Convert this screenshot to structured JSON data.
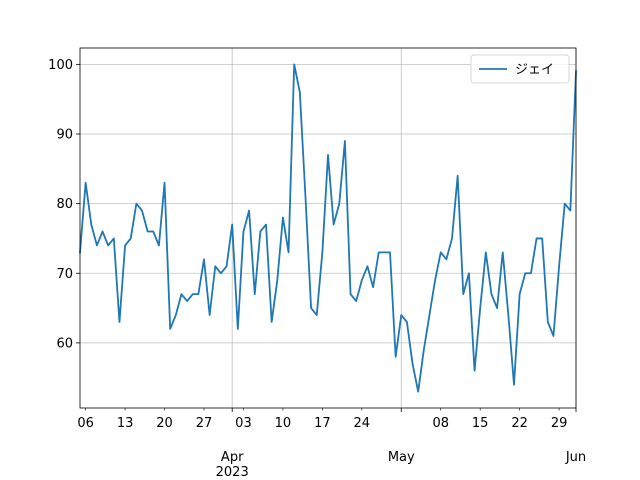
{
  "chart_data": {
    "type": "line",
    "title": "",
    "xlabel": "",
    "ylabel": "",
    "x": [
      "2023-03-05",
      "2023-03-06",
      "2023-03-07",
      "2023-03-08",
      "2023-03-09",
      "2023-03-10",
      "2023-03-11",
      "2023-03-12",
      "2023-03-13",
      "2023-03-14",
      "2023-03-15",
      "2023-03-16",
      "2023-03-17",
      "2023-03-18",
      "2023-03-19",
      "2023-03-20",
      "2023-03-21",
      "2023-03-22",
      "2023-03-23",
      "2023-03-24",
      "2023-03-25",
      "2023-03-26",
      "2023-03-27",
      "2023-03-28",
      "2023-03-29",
      "2023-03-30",
      "2023-03-31",
      "2023-04-01",
      "2023-04-02",
      "2023-04-03",
      "2023-04-04",
      "2023-04-05",
      "2023-04-06",
      "2023-04-07",
      "2023-04-08",
      "2023-04-09",
      "2023-04-10",
      "2023-04-11",
      "2023-04-12",
      "2023-04-13",
      "2023-04-14",
      "2023-04-15",
      "2023-04-16",
      "2023-04-17",
      "2023-04-18",
      "2023-04-19",
      "2023-04-20",
      "2023-04-21",
      "2023-04-22",
      "2023-04-23",
      "2023-04-24",
      "2023-04-25",
      "2023-04-26",
      "2023-04-27",
      "2023-04-28",
      "2023-04-29",
      "2023-04-30",
      "2023-05-01",
      "2023-05-02",
      "2023-05-03",
      "2023-05-04",
      "2023-05-05",
      "2023-05-06",
      "2023-05-07",
      "2023-05-08",
      "2023-05-09",
      "2023-05-10",
      "2023-05-11",
      "2023-05-12",
      "2023-05-13",
      "2023-05-14",
      "2023-05-15",
      "2023-05-16",
      "2023-05-17",
      "2023-05-18",
      "2023-05-19",
      "2023-05-20",
      "2023-05-21",
      "2023-05-22",
      "2023-05-23",
      "2023-05-24",
      "2023-05-25",
      "2023-05-26",
      "2023-05-27",
      "2023-05-28",
      "2023-05-29",
      "2023-05-30",
      "2023-05-31",
      "2023-06-01"
    ],
    "series": [
      {
        "name": "ジェイ",
        "color": "#1f77b4",
        "values": [
          73,
          83,
          77,
          74,
          76,
          74,
          75,
          63,
          74,
          75,
          80,
          79,
          76,
          76,
          74,
          83,
          62,
          64,
          67,
          66,
          67,
          67,
          72,
          64,
          71,
          70,
          71,
          77,
          62,
          76,
          79,
          67,
          76,
          77,
          63,
          69,
          78,
          73,
          100,
          96,
          81,
          65,
          64,
          73,
          87,
          77,
          80,
          89,
          67,
          66,
          69,
          71,
          68,
          73,
          73,
          73,
          58,
          64,
          63,
          57,
          53,
          59,
          64,
          69,
          73,
          72,
          75,
          84,
          67,
          70,
          56,
          65,
          73,
          67,
          65,
          73,
          64,
          54,
          67,
          70,
          70,
          75,
          75,
          63,
          61,
          71,
          80,
          79,
          99
        ]
      }
    ],
    "xlim": [
      "2023-03-05",
      "2023-06-01"
    ],
    "ylim": [
      50.65,
      102.35
    ],
    "yticks": [
      60,
      70,
      80,
      90,
      100
    ],
    "xticks_minor": [
      {
        "date": "2023-03-06",
        "label": "06"
      },
      {
        "date": "2023-03-13",
        "label": "13"
      },
      {
        "date": "2023-03-20",
        "label": "20"
      },
      {
        "date": "2023-03-27",
        "label": "27"
      },
      {
        "date": "2023-04-03",
        "label": "03"
      },
      {
        "date": "2023-04-10",
        "label": "10"
      },
      {
        "date": "2023-04-17",
        "label": "17"
      },
      {
        "date": "2023-04-24",
        "label": "24"
      },
      {
        "date": "2023-05-08",
        "label": "08"
      },
      {
        "date": "2023-05-15",
        "label": "15"
      },
      {
        "date": "2023-05-22",
        "label": "22"
      },
      {
        "date": "2023-05-29",
        "label": "29"
      }
    ],
    "xticks_major": [
      {
        "date": "2023-04-01",
        "label": "Apr",
        "sublabel": "2023"
      },
      {
        "date": "2023-05-01",
        "label": "May",
        "sublabel": ""
      },
      {
        "date": "2023-06-01",
        "label": "Jun",
        "sublabel": ""
      }
    ],
    "grid": true,
    "legend": {
      "position": "top-right"
    }
  }
}
